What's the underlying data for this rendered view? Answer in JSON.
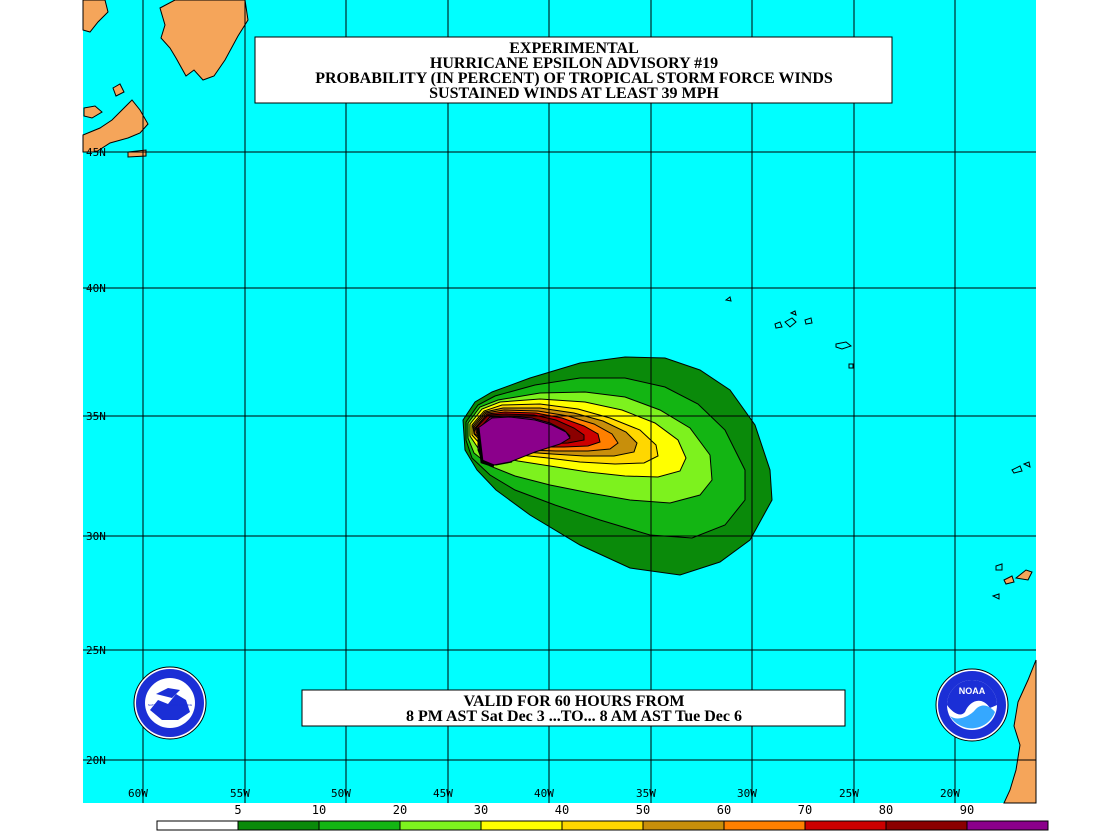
{
  "title": {
    "line1": "EXPERIMENTAL",
    "line2": "HURRICANE EPSILON ADVISORY #19",
    "line3": "PROBABILITY (IN PERCENT) OF TROPICAL STORM FORCE WINDS",
    "line4": "SUSTAINED WINDS AT LEAST 39 MPH"
  },
  "valid": {
    "line1": "VALID FOR 60 HOURS FROM",
    "line2": "8 PM AST Sat Dec 3 ...TO... 8 AM AST Tue Dec 6"
  },
  "lat_labels": [
    "45N",
    "40N",
    "35N",
    "30N",
    "25N",
    "20N"
  ],
  "lon_labels": [
    "60W",
    "55W",
    "50W",
    "45W",
    "40W",
    "35W",
    "30W",
    "25W",
    "20W"
  ],
  "scale": {
    "labels": [
      "5",
      "10",
      "20",
      "30",
      "40",
      "50",
      "60",
      "70",
      "80",
      "90"
    ],
    "colors": [
      "#ffffff",
      "#0a8a0a",
      "#13b513",
      "#7df21e",
      "#ffff00",
      "#ffd700",
      "#c88f0b",
      "#ff8000",
      "#cc0000",
      "#8b0000",
      "#8b008b"
    ]
  },
  "colors": {
    "ocean": "#00ffff",
    "land": "#f5a55a",
    "grid": "#000000"
  },
  "logos": {
    "nws": "NATIONAL WEATHER SERVICE",
    "noaa": "NOAA"
  }
}
